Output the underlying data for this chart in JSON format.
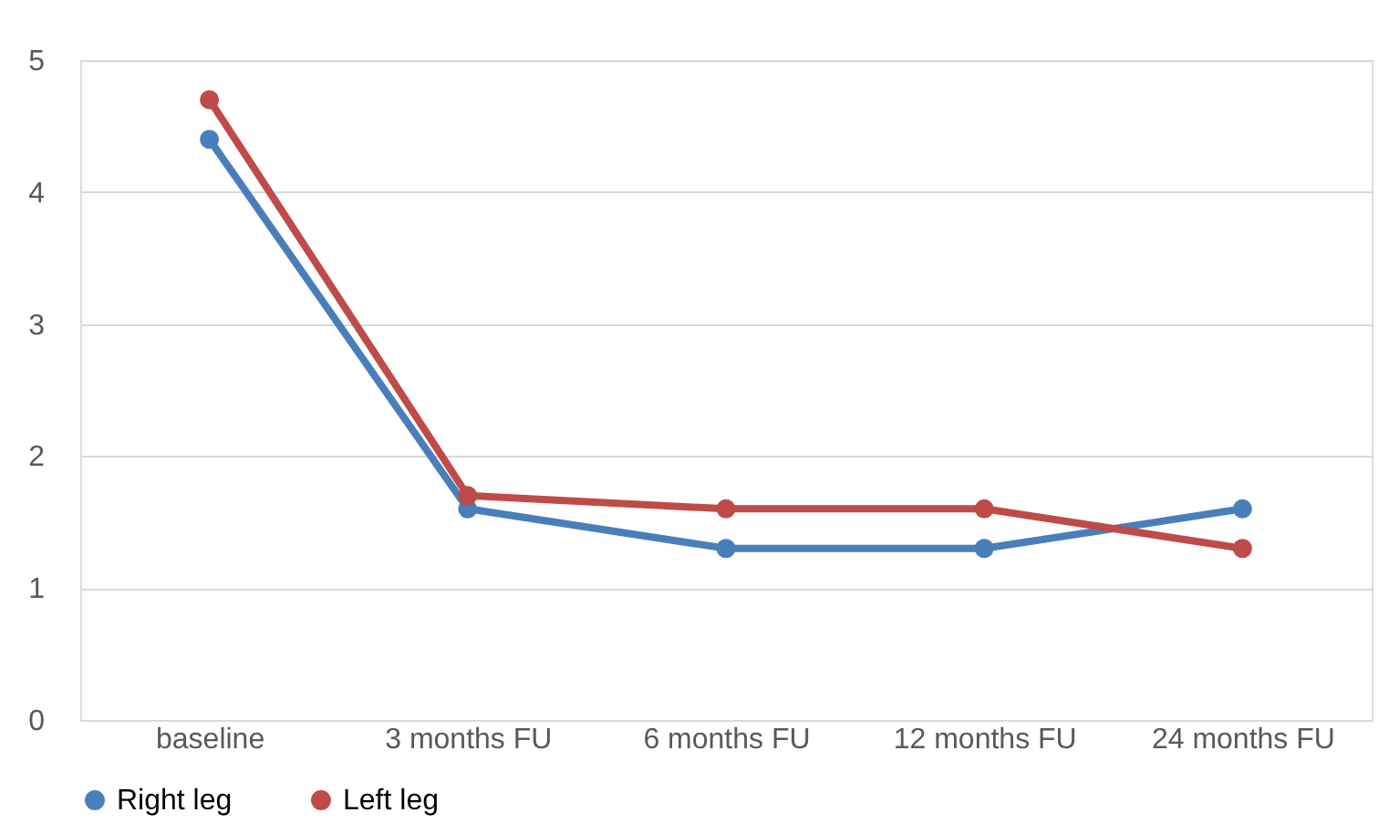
{
  "chart_data": {
    "type": "line",
    "categories": [
      "baseline",
      "3 months FU",
      "6 months FU",
      "12 months FU",
      "24 months FU"
    ],
    "series": [
      {
        "name": "Right leg",
        "color": "#4a7ebb",
        "values": [
          4.4,
          1.6,
          1.3,
          1.3,
          1.6
        ]
      },
      {
        "name": "Left leg",
        "color": "#be4b48",
        "values": [
          4.7,
          1.7,
          1.6,
          1.6,
          1.3
        ]
      }
    ],
    "ylim": [
      0,
      5
    ],
    "yticks": [
      0,
      1,
      2,
      3,
      4,
      5
    ],
    "grid": "y",
    "legend": "bottom",
    "marker": "circle",
    "line_style": "solid"
  }
}
